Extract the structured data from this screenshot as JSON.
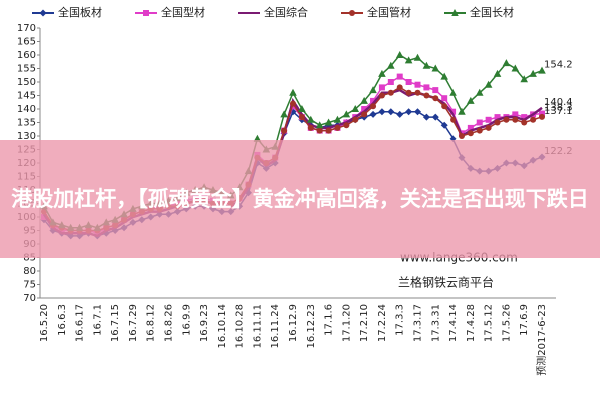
{
  "chart_data": {
    "type": "line",
    "categories": [
      "16.5.20",
      null,
      "16.6.3",
      null,
      "16.6.17",
      null,
      "16.7.1",
      null,
      "16.7.15",
      null,
      "16.7.29",
      null,
      "16.8.12",
      null,
      "16.8.26",
      null,
      "16.9.9",
      null,
      "16.9.23",
      null,
      "16.10.14",
      null,
      "16.10.28",
      null,
      "16.11.11",
      null,
      "16.11.24",
      null,
      "16.12.9",
      null,
      "16.12.23",
      null,
      "17.1.6",
      null,
      "17.1.20",
      null,
      "17.2.10",
      null,
      "17.2.24",
      null,
      "17.3.3",
      null,
      "17.3.17",
      null,
      "17.3.31",
      null,
      "17.4.14",
      null,
      "17.4.28",
      null,
      "17.5.12",
      null,
      "17.5.26",
      null,
      "17.6.9",
      null,
      "预测2017-6-23"
    ],
    "series": [
      {
        "name": "全国板材",
        "color": "#1f3a93",
        "marker": "diamond",
        "values": [
          99,
          95,
          94,
          93,
          93,
          94,
          93,
          94,
          95,
          96,
          98,
          99,
          100,
          101,
          101,
          102,
          103,
          104,
          104,
          103,
          102,
          102,
          104,
          109,
          120,
          118,
          120,
          131,
          139,
          136,
          134,
          133,
          134,
          134,
          135,
          136,
          137,
          138,
          139,
          139,
          138,
          139,
          139,
          137,
          137,
          134,
          129,
          122,
          118,
          117,
          117,
          118,
          120,
          120,
          119,
          121,
          122.2
        ]
      },
      {
        "name": "全国型材",
        "color": "#e03cc8",
        "marker": "square",
        "values": [
          100,
          97,
          95,
          95,
          95,
          95,
          94,
          96,
          97,
          99,
          101,
          102,
          103,
          104,
          104,
          105,
          106,
          107,
          107,
          106,
          105,
          105,
          107,
          112,
          123,
          120,
          122,
          132,
          141,
          137,
          133,
          132,
          132,
          133,
          135,
          137,
          140,
          143,
          148,
          150,
          152,
          150,
          149,
          148,
          147,
          144,
          139,
          131,
          133,
          135,
          136,
          137,
          137,
          138,
          137,
          138,
          138.3
        ]
      },
      {
        "name": "全国综合",
        "color": "#7a1a72",
        "marker": "none",
        "values": [
          101,
          96,
          94,
          94,
          94,
          94,
          93,
          95,
          96,
          98,
          100,
          101,
          102,
          102,
          103,
          104,
          105,
          106,
          106,
          105,
          104,
          104,
          106,
          111,
          122,
          119,
          121,
          131,
          143,
          138,
          134,
          133,
          133,
          134,
          135,
          137,
          139,
          142,
          146,
          146,
          147,
          145,
          146,
          145,
          144,
          142,
          138,
          130,
          132,
          133,
          134,
          136,
          137,
          137,
          136,
          138,
          140.4
        ]
      },
      {
        "name": "全国管材",
        "color": "#a3322a",
        "marker": "circle",
        "values": [
          102,
          97,
          96,
          95,
          95,
          95,
          95,
          96,
          97,
          99,
          101,
          102,
          103,
          103,
          104,
          104,
          105,
          106,
          106,
          105,
          105,
          105,
          107,
          112,
          122,
          120,
          122,
          132,
          142,
          137,
          133,
          132,
          132,
          133,
          134,
          136,
          138,
          141,
          145,
          146,
          148,
          146,
          146,
          145,
          144,
          141,
          136,
          130,
          131,
          132,
          133,
          135,
          136,
          136,
          135,
          136,
          137.1
        ]
      },
      {
        "name": "全国长材",
        "color": "#2e7d32",
        "marker": "triangle",
        "values": [
          104,
          98,
          97,
          96,
          96,
          97,
          96,
          98,
          99,
          101,
          103,
          104,
          105,
          105,
          106,
          107,
          109,
          110,
          111,
          110,
          109,
          108,
          111,
          117,
          129,
          125,
          126,
          138,
          146,
          140,
          136,
          134,
          135,
          136,
          138,
          140,
          143,
          147,
          153,
          156,
          160,
          158,
          159,
          156,
          155,
          152,
          146,
          139,
          143,
          146,
          149,
          153,
          157,
          155,
          151,
          153,
          154.2
        ]
      }
    ],
    "ylim": [
      70,
      170
    ],
    "yticks": [
      70,
      75,
      80,
      85,
      90,
      95,
      100,
      105,
      110,
      115,
      120,
      125,
      130,
      135,
      140,
      145,
      150,
      155,
      160,
      165,
      170
    ],
    "grid": false,
    "annotations": [
      "www.lange360.com",
      "兰格钢铁云商平台"
    ],
    "banner": "港股加杠杆，【孤魂黄金】黄金冲高回落，关注是否出现下跌日"
  }
}
